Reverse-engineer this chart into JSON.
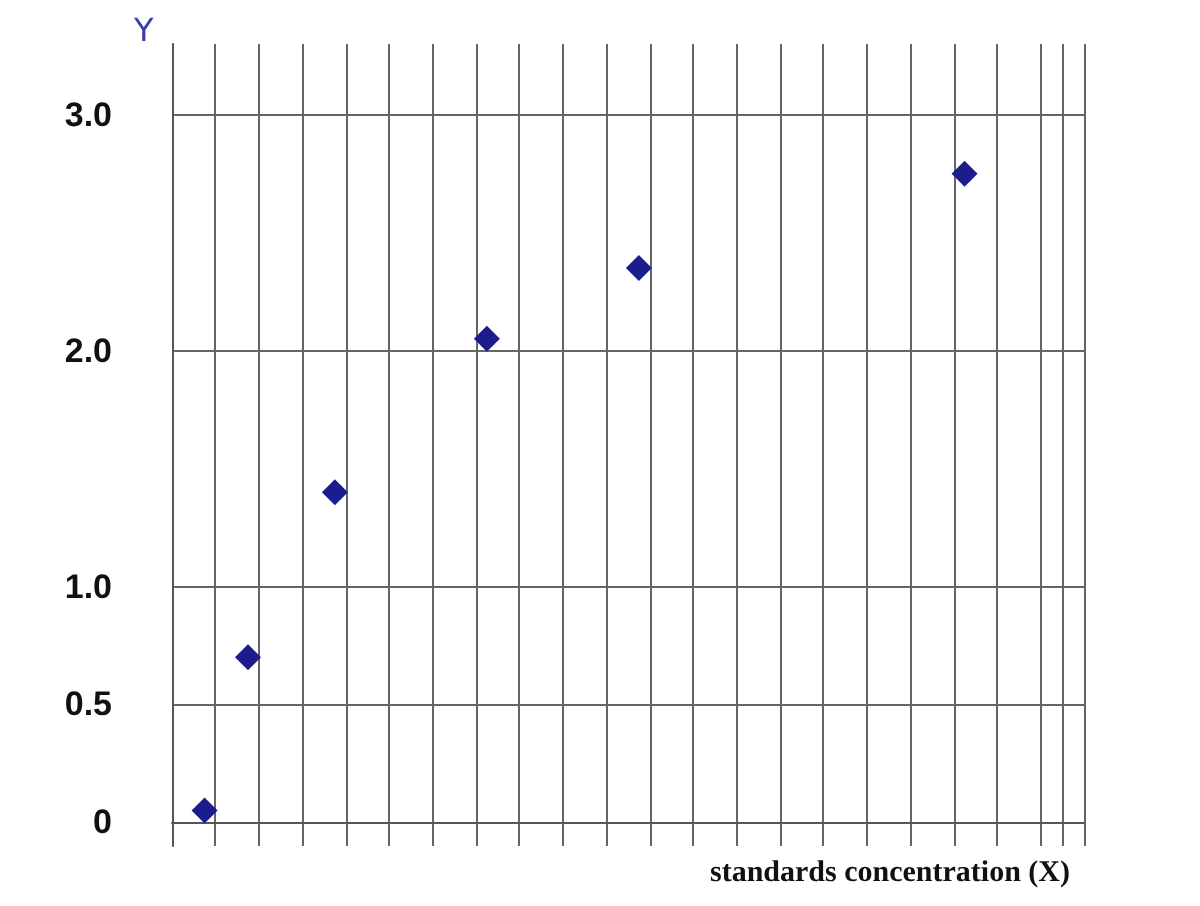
{
  "chart_data": {
    "type": "scatter",
    "ylabel": "Y",
    "xlabel": "standards concentration (X)",
    "categories": [
      null,
      null,
      null,
      null,
      null,
      null,
      null,
      null,
      null,
      null,
      null,
      null,
      null,
      null,
      null,
      null,
      null,
      null,
      null,
      null,
      null,
      null,
      null,
      null,
      null,
      null,
      null,
      null,
      null,
      null,
      null,
      null,
      null,
      null,
      null,
      null,
      null,
      null,
      null,
      null,
      null,
      null
    ],
    "values": [
      null,
      0.05,
      null,
      0.7,
      null,
      null,
      null,
      1.4,
      null,
      null,
      null,
      null,
      null,
      null,
      2.05,
      null,
      null,
      null,
      null,
      null,
      null,
      2.35,
      null,
      null,
      null,
      null,
      null,
      null,
      null,
      null,
      null,
      null,
      null,
      null,
      null,
      null,
      2.75,
      null,
      null,
      null,
      null,
      null
    ],
    "color": "#1c1c8e",
    "marker": "diamond",
    "ylim": [
      -0.1,
      3.3
    ],
    "yticks": [
      0,
      0.5,
      {
        "value": 1,
        "label": "1.0"
      },
      {
        "value": 2,
        "label": "2.0"
      },
      {
        "value": 3,
        "label": "3.0"
      }
    ],
    "grid": true,
    "tick_labels": "y"
  }
}
